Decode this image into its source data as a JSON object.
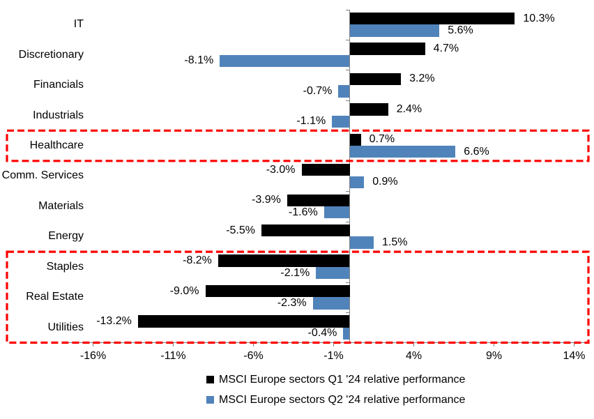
{
  "chart_data": {
    "type": "bar",
    "orientation": "horizontal",
    "title": "",
    "xlabel": "",
    "ylabel": "",
    "grid": false,
    "categories": [
      "IT",
      "Discretionary",
      "Financials",
      "Industrials",
      "Healthcare",
      "Comm. Services",
      "Materials",
      "Energy",
      "Staples",
      "Real Estate",
      "Utilities"
    ],
    "series": [
      {
        "name": "MSCI Europe sectors Q1 '24 relative performance",
        "color": "#000000",
        "values": [
          10.3,
          4.7,
          3.2,
          2.4,
          0.7,
          -3.0,
          -3.9,
          -5.5,
          -8.2,
          -9.0,
          -13.2
        ],
        "labels": [
          "10.3%",
          "4.7%",
          "3.2%",
          "2.4%",
          "0.7%",
          "-3.0%",
          "-3.9%",
          "-5.5%",
          "-8.2%",
          "-9.0%",
          "-13.2%"
        ]
      },
      {
        "name": "MSCI Europe sectors Q2 '24 relative performance",
        "color": "#5083BA",
        "values": [
          5.6,
          -8.1,
          -0.7,
          -1.1,
          6.6,
          0.9,
          -1.6,
          1.5,
          -2.1,
          -2.3,
          -0.4
        ],
        "labels": [
          "5.6%",
          "-8.1%",
          "-0.7%",
          "-1.1%",
          "6.6%",
          "0.9%",
          "-1.6%",
          "1.5%",
          "-2.1%",
          "-2.3%",
          "-0.4%"
        ]
      }
    ],
    "x_axis": {
      "min": -17.5,
      "max": 14.8,
      "ticks": [
        -16,
        -11,
        -6,
        -1,
        4,
        9,
        14
      ],
      "tick_labels": [
        "-16%",
        "-11%",
        "-6%",
        "-1%",
        "4%",
        "9%",
        "14%"
      ],
      "axis_color": "#808080"
    },
    "annotations": [
      {
        "type": "dashed-box",
        "color": "#FF0000",
        "from": "Healthcare",
        "to": "Healthcare"
      },
      {
        "type": "dashed-box",
        "color": "#FF0000",
        "from": "Staples",
        "to": "Utilities"
      }
    ],
    "legend": {
      "position": "bottom"
    }
  }
}
